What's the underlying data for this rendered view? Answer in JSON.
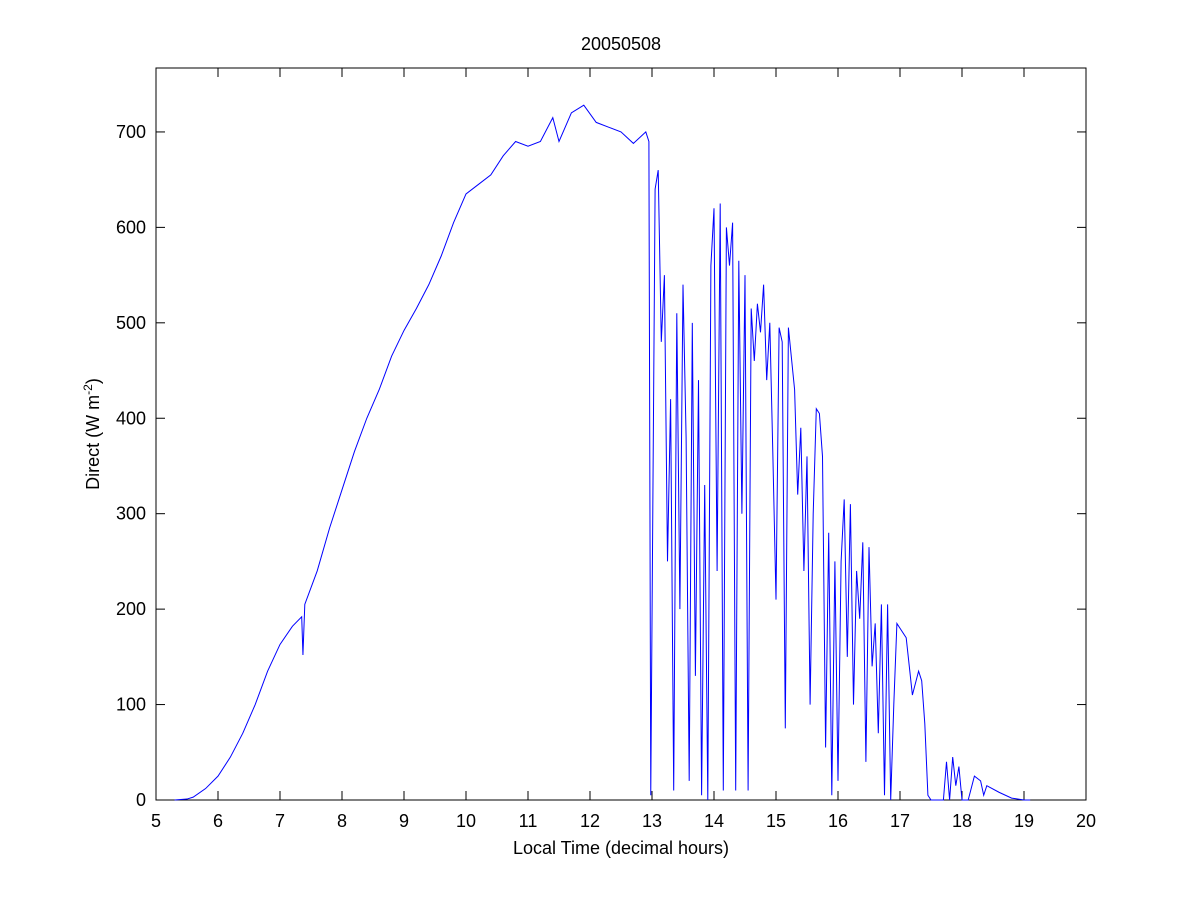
{
  "chart_data": {
    "type": "line",
    "title": "20050508",
    "x_label": "Local Time (decimal hours)",
    "y_label": {
      "text": "Direct (W m",
      "superscript": "-2",
      "suffix": ")"
    },
    "xlim": [
      5,
      20
    ],
    "xticks": [
      5,
      6,
      7,
      8,
      9,
      10,
      11,
      12,
      13,
      14,
      15,
      16,
      17,
      18,
      19,
      20
    ],
    "ylim": [
      0,
      767
    ],
    "yticks": [
      0,
      100,
      200,
      300,
      400,
      500,
      600,
      700
    ],
    "x": [
      5.3,
      5.5,
      5.6,
      5.8,
      6.0,
      6.2,
      6.4,
      6.6,
      6.8,
      7.0,
      7.2,
      7.35,
      7.37,
      7.4,
      7.6,
      7.8,
      8.0,
      8.2,
      8.4,
      8.6,
      8.8,
      9.0,
      9.2,
      9.4,
      9.6,
      9.8,
      10.0,
      10.2,
      10.4,
      10.6,
      10.8,
      11.0,
      11.2,
      11.4,
      11.5,
      11.7,
      11.9,
      12.1,
      12.3,
      12.5,
      12.7,
      12.9,
      12.95,
      12.98,
      13.05,
      13.1,
      13.15,
      13.2,
      13.25,
      13.3,
      13.35,
      13.4,
      13.45,
      13.5,
      13.55,
      13.6,
      13.65,
      13.7,
      13.75,
      13.8,
      13.85,
      13.9,
      13.95,
      14.0,
      14.05,
      14.1,
      14.15,
      14.2,
      14.25,
      14.3,
      14.35,
      14.4,
      14.45,
      14.5,
      14.55,
      14.6,
      14.65,
      14.7,
      14.75,
      14.8,
      14.85,
      14.9,
      14.95,
      15.0,
      15.05,
      15.1,
      15.15,
      15.2,
      15.3,
      15.35,
      15.4,
      15.45,
      15.5,
      15.55,
      15.6,
      15.65,
      15.7,
      15.75,
      15.8,
      15.85,
      15.9,
      15.95,
      16.0,
      16.05,
      16.1,
      16.15,
      16.2,
      16.25,
      16.3,
      16.35,
      16.4,
      16.45,
      16.5,
      16.55,
      16.6,
      16.65,
      16.7,
      16.75,
      16.8,
      16.85,
      16.9,
      16.95,
      17.0,
      17.1,
      17.2,
      17.3,
      17.35,
      17.4,
      17.45,
      17.5,
      17.7,
      17.75,
      17.8,
      17.85,
      17.9,
      17.95,
      18.0,
      18.1,
      18.2,
      18.3,
      18.35,
      18.4,
      18.6,
      18.8,
      19.0,
      19.1
    ],
    "series": [
      {
        "color": "#0000ff",
        "values": [
          0,
          1,
          3,
          12,
          25,
          45,
          70,
          100,
          135,
          163,
          182,
          192,
          152,
          205,
          240,
          285,
          325,
          365,
          400,
          430,
          465,
          492,
          515,
          540,
          570,
          605,
          635,
          645,
          655,
          675,
          690,
          685,
          690,
          715,
          690,
          720,
          728,
          710,
          705,
          700,
          688,
          700,
          690,
          5,
          640,
          660,
          480,
          550,
          250,
          420,
          10,
          510,
          200,
          540,
          380,
          20,
          500,
          130,
          440,
          5,
          330,
          0,
          560,
          620,
          240,
          625,
          10,
          600,
          560,
          605,
          10,
          565,
          300,
          550,
          10,
          515,
          460,
          520,
          490,
          540,
          440,
          500,
          360,
          210,
          495,
          480,
          75,
          495,
          430,
          320,
          390,
          240,
          360,
          100,
          300,
          410,
          405,
          360,
          55,
          280,
          5,
          250,
          20,
          250,
          315,
          150,
          310,
          100,
          240,
          190,
          270,
          40,
          265,
          140,
          185,
          70,
          205,
          5,
          205,
          0,
          100,
          185,
          180,
          170,
          110,
          135,
          125,
          80,
          5,
          0,
          0,
          40,
          0,
          45,
          15,
          35,
          0,
          0,
          25,
          20,
          5,
          15,
          8,
          2,
          0,
          0
        ]
      }
    ]
  }
}
